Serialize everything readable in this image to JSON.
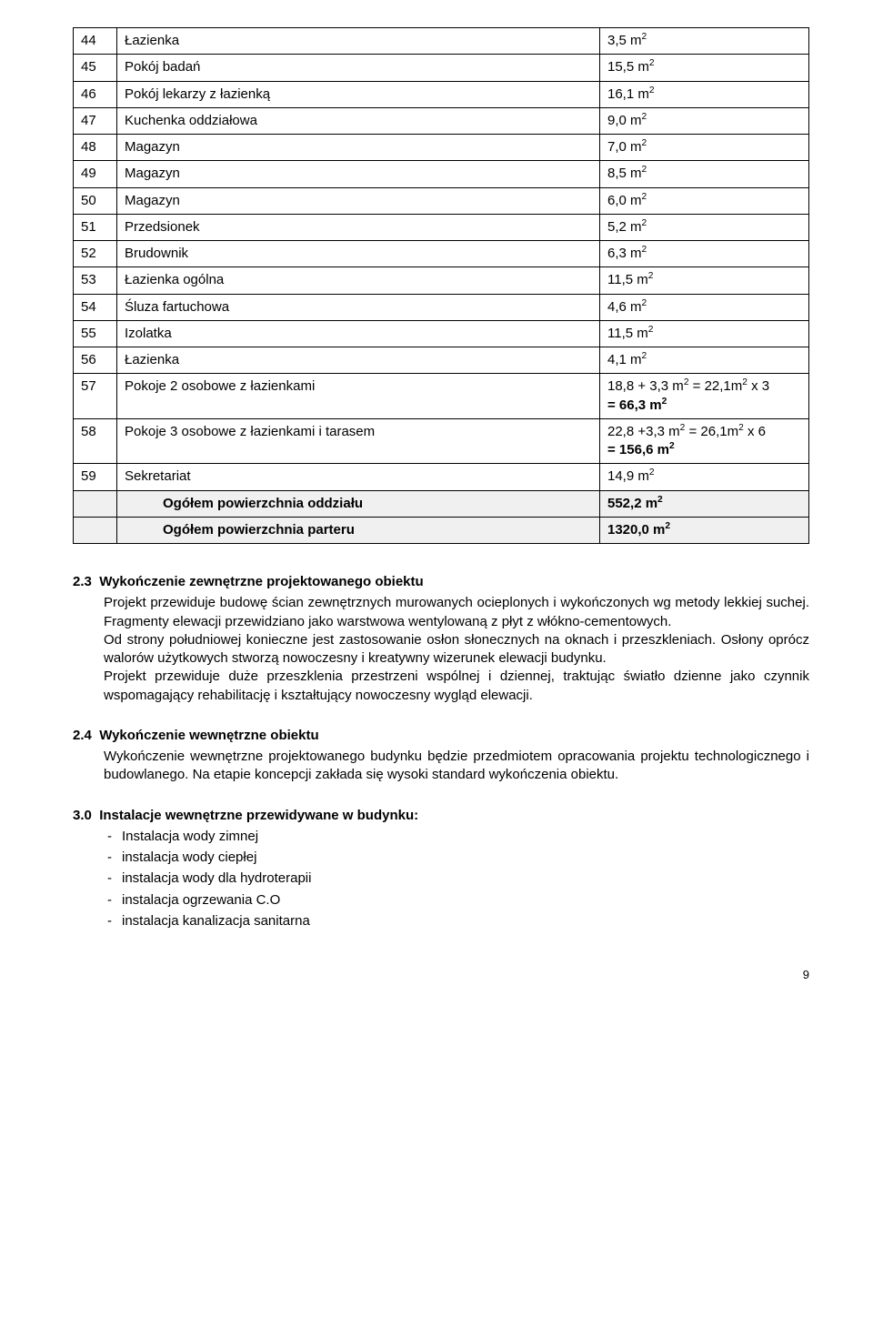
{
  "table": {
    "rows": [
      {
        "num": "44",
        "name": "Łazienka",
        "value": "3,5 m²"
      },
      {
        "num": "45",
        "name": "Pokój badań",
        "value": "15,5 m²"
      },
      {
        "num": "46",
        "name": "Pokój lekarzy z łazienką",
        "value": "16,1 m²"
      },
      {
        "num": "47",
        "name": "Kuchenka oddziałowa",
        "value": "9,0 m²"
      },
      {
        "num": "48",
        "name": "Magazyn",
        "value": "7,0 m²"
      },
      {
        "num": "49",
        "name": "Magazyn",
        "value": "8,5 m²"
      },
      {
        "num": "50",
        "name": "Magazyn",
        "value": "6,0 m²"
      },
      {
        "num": "51",
        "name": "Przedsionek",
        "value": "5,2 m²"
      },
      {
        "num": "52",
        "name": "Brudownik",
        "value": "6,3 m²"
      },
      {
        "num": "53",
        "name": "Łazienka ogólna",
        "value": "11,5 m²"
      },
      {
        "num": "54",
        "name": "Śluza fartuchowa",
        "value": "4,6 m²"
      },
      {
        "num": "55",
        "name": "Izolatka",
        "value": "11,5 m²"
      },
      {
        "num": "56",
        "name": "Łazienka",
        "value": "4,1 m²"
      },
      {
        "num": "57",
        "name": "Pokoje 2 osobowe z łazienkami",
        "value": "18,8 + 3,3 m² = 22,1m² x 3\n= 66,3 m²",
        "boldSecond": true
      },
      {
        "num": "58",
        "name": "Pokoje 3 osobowe z łazienkami i tarasem",
        "value": "22,8 +3,3 m² = 26,1m² x 6\n= 156,6 m²",
        "boldSecond": true
      },
      {
        "num": "59",
        "name": "Sekretariat",
        "value": "14,9 m²"
      }
    ],
    "totals": [
      {
        "name": "Ogółem powierzchnia oddziału",
        "value": "552,2 m²"
      },
      {
        "name": "Ogółem powierzchnia parteru",
        "value": "1320,0 m²"
      }
    ]
  },
  "sections": [
    {
      "num": "2.3",
      "title": "Wykończenie zewnętrzne projektowanego obiektu",
      "body": "Projekt przewiduje budowę ścian zewnętrznych murowanych ocieplonych i wykończonych wg metody lekkiej suchej. Fragmenty elewacji przewidziano jako warstwowa wentylowaną z płyt z włókno-cementowych.\nOd strony południowej konieczne jest zastosowanie osłon słonecznych na oknach i przeszkleniach. Osłony oprócz walorów użytkowych stworzą nowoczesny i kreatywny  wizerunek elewacji budynku.\nProjekt przewiduje duże przeszklenia przestrzeni wspólnej i dziennej, traktując światło dzienne jako czynnik wspomagający rehabilitację i kształtujący nowoczesny wygląd elewacji."
    },
    {
      "num": "2.4",
      "title": "Wykończenie wewnętrzne  obiektu",
      "body": "Wykończenie wewnętrzne projektowanego budynku będzie przedmiotem opracowania projektu technologicznego i budowlanego. Na etapie koncepcji zakłada się wysoki standard wykończenia obiektu."
    }
  ],
  "listSection": {
    "num": "3.0",
    "title": "Instalacje wewnętrzne przewidywane  w budynku:",
    "items": [
      "Instalacja  wody zimnej",
      "instalacja wody ciepłej",
      "instalacja wody dla hydroterapii",
      "instalacja ogrzewania  C.O",
      "instalacja kanalizacja sanitarna"
    ]
  },
  "pageNumber": "9"
}
